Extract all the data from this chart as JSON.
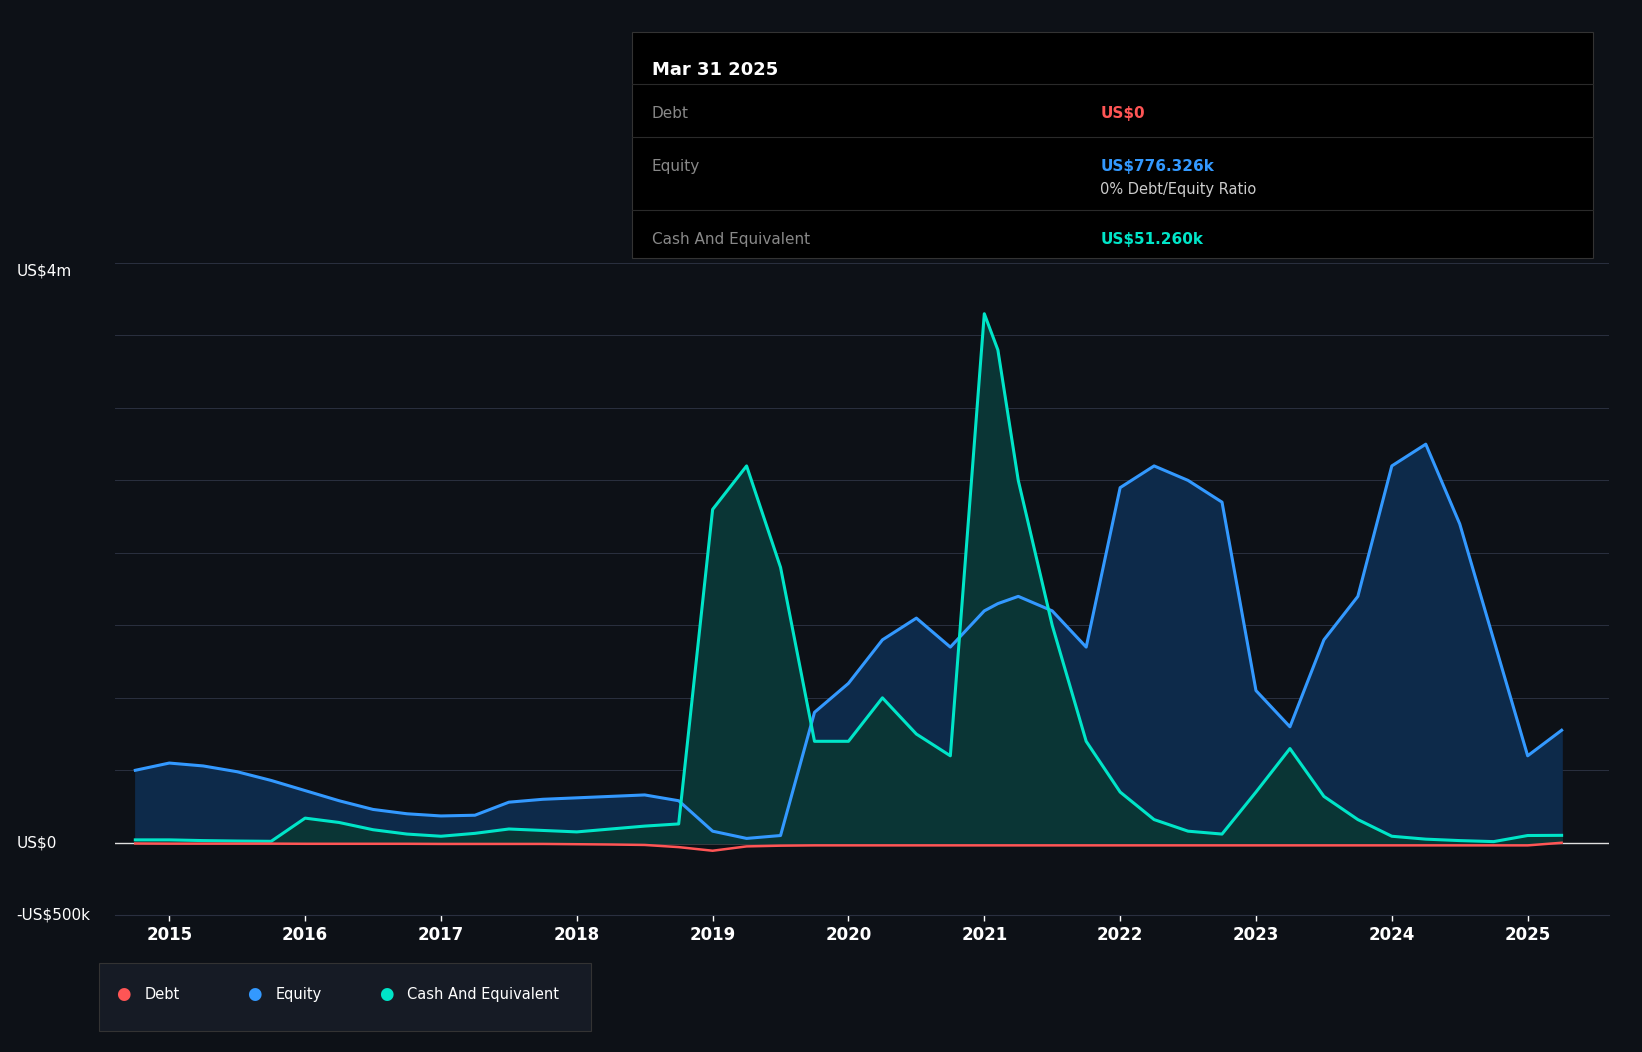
{
  "background_color": "#0d1117",
  "plot_bg_color": "#0d1117",
  "grid_color": "#2a3040",
  "line_color_debt": "#ff5555",
  "line_color_equity": "#3399ff",
  "line_color_cash": "#00e5c8",
  "fill_color_equity": "#0d2a4a",
  "fill_color_cash": "#0a3535",
  "ylabel_top": "US$4m",
  "ylabel_bottom": "-US$500k",
  "ylabel_zero": "US$0",
  "ylim": [
    -500000,
    4000000
  ],
  "xlim": [
    2014.6,
    2025.6
  ],
  "x_ticks": [
    2015,
    2016,
    2017,
    2018,
    2019,
    2020,
    2021,
    2022,
    2023,
    2024,
    2025
  ],
  "tooltip_title": "Mar 31 2025",
  "tooltip_debt_label": "Debt",
  "tooltip_debt_value": "US$0",
  "tooltip_debt_color": "#ff5555",
  "tooltip_equity_label": "Equity",
  "tooltip_equity_value": "US$776.326k",
  "tooltip_equity_color": "#3399ff",
  "tooltip_ratio": "0% Debt/Equity Ratio",
  "tooltip_cash_label": "Cash And Equivalent",
  "tooltip_cash_value": "US$51.260k",
  "tooltip_cash_color": "#00e5c8",
  "legend_items": [
    "Debt",
    "Equity",
    "Cash And Equivalent"
  ],
  "legend_colors": [
    "#ff5555",
    "#3399ff",
    "#00e5c8"
  ],
  "dates": [
    2014.75,
    2015.0,
    2015.25,
    2015.5,
    2015.75,
    2016.0,
    2016.25,
    2016.5,
    2016.75,
    2017.0,
    2017.25,
    2017.5,
    2017.75,
    2018.0,
    2018.25,
    2018.5,
    2018.75,
    2019.0,
    2019.25,
    2019.5,
    2019.75,
    2020.0,
    2020.25,
    2020.5,
    2020.75,
    2021.0,
    2021.1,
    2021.25,
    2021.5,
    2021.75,
    2022.0,
    2022.25,
    2022.5,
    2022.75,
    2023.0,
    2023.25,
    2023.5,
    2023.75,
    2024.0,
    2024.25,
    2024.5,
    2024.75,
    2025.0,
    2025.25
  ],
  "equity": [
    500000,
    550000,
    530000,
    490000,
    430000,
    360000,
    290000,
    230000,
    200000,
    185000,
    190000,
    280000,
    300000,
    310000,
    320000,
    330000,
    290000,
    80000,
    30000,
    50000,
    900000,
    1100000,
    1400000,
    1550000,
    1350000,
    1600000,
    1650000,
    1700000,
    1600000,
    1350000,
    2450000,
    2600000,
    2500000,
    2350000,
    1050000,
    800000,
    1400000,
    1700000,
    2600000,
    2750000,
    2200000,
    1400000,
    600000,
    776326
  ],
  "cash": [
    20000,
    20000,
    15000,
    12000,
    10000,
    170000,
    140000,
    90000,
    60000,
    45000,
    65000,
    95000,
    85000,
    75000,
    95000,
    115000,
    130000,
    2300000,
    2600000,
    1900000,
    700000,
    700000,
    1000000,
    750000,
    600000,
    3650000,
    3400000,
    2500000,
    1500000,
    700000,
    350000,
    160000,
    80000,
    60000,
    350000,
    650000,
    320000,
    160000,
    45000,
    25000,
    15000,
    8000,
    50000,
    51260
  ],
  "debt": [
    -5000,
    -6000,
    -6000,
    -6000,
    -6000,
    -7000,
    -7000,
    -7000,
    -7000,
    -8000,
    -8000,
    -8000,
    -8000,
    -10000,
    -12000,
    -15000,
    -30000,
    -55000,
    -25000,
    -20000,
    -18000,
    -18000,
    -18000,
    -18000,
    -18000,
    -18000,
    -18000,
    -18000,
    -18000,
    -18000,
    -18000,
    -18000,
    -18000,
    -18000,
    -18000,
    -18000,
    -18000,
    -18000,
    -18000,
    -18000,
    -18000,
    -18000,
    -18000,
    0
  ]
}
